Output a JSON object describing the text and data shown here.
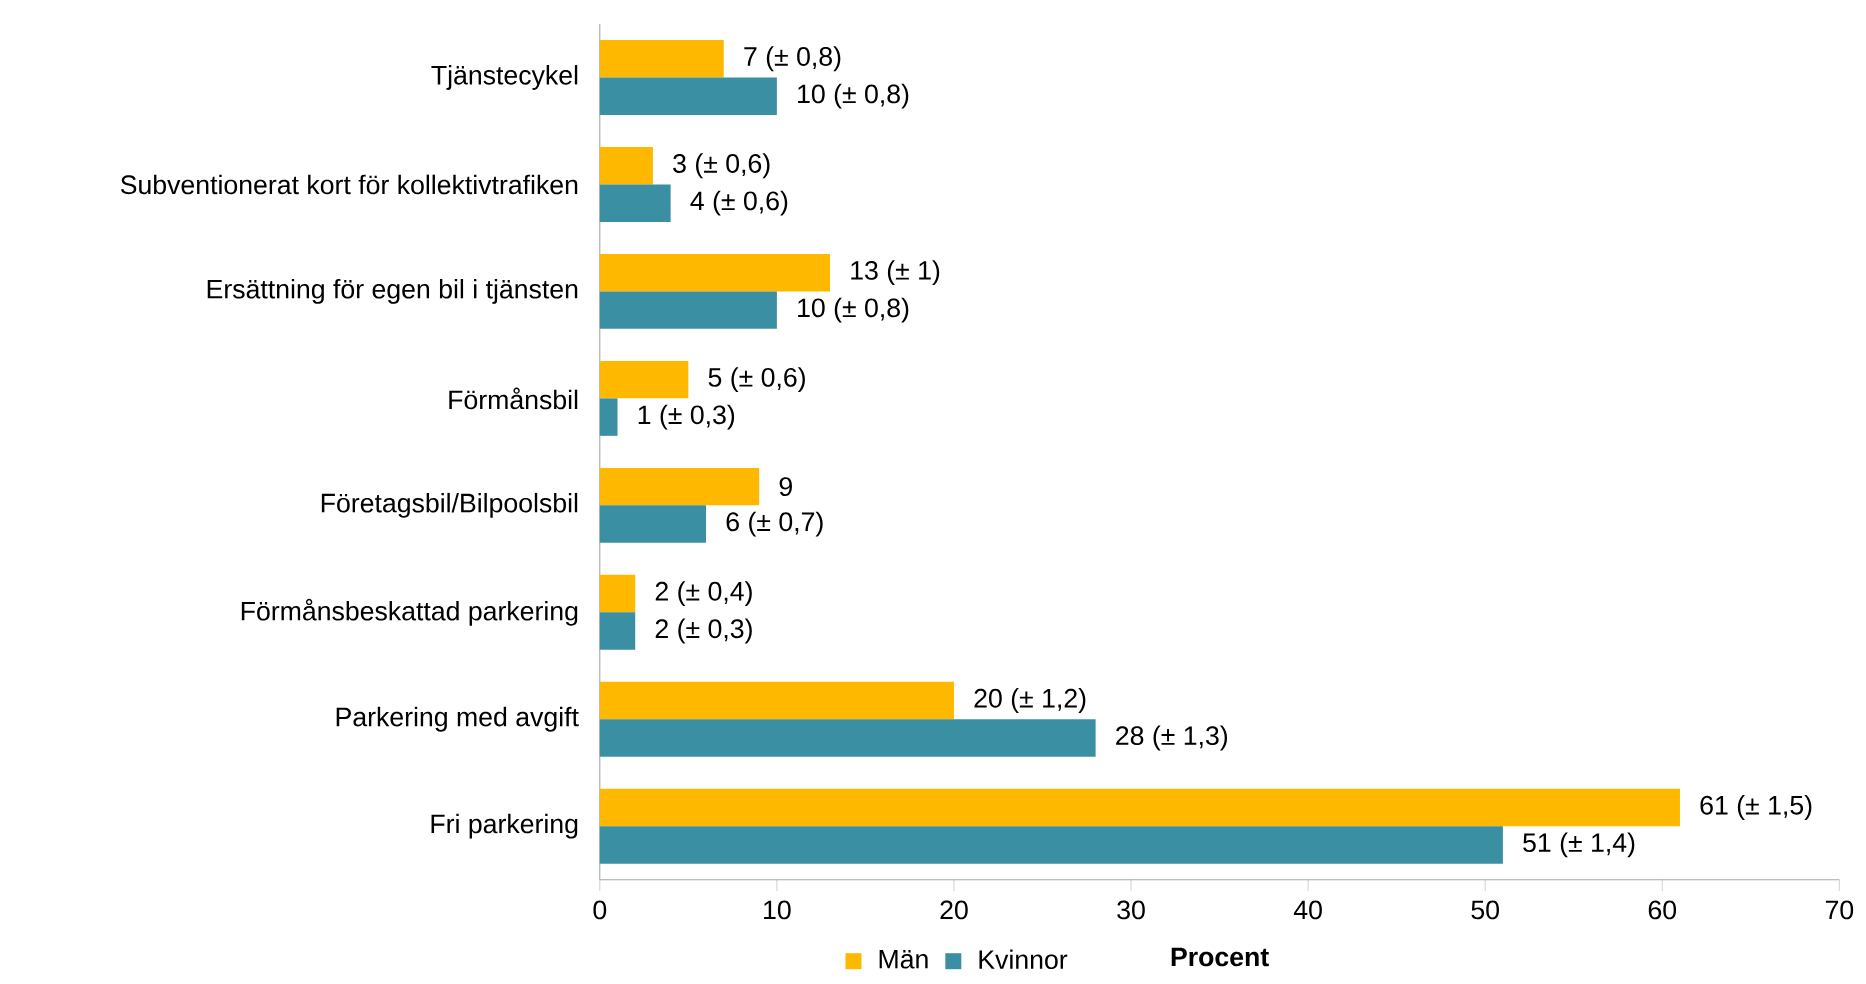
{
  "chart_data": {
    "type": "bar",
    "orientation": "horizontal",
    "xlabel": "Procent",
    "categories": [
      "Tjänstecykel",
      "Subventionerat kort för kollektivtrafiken",
      "Ersättning för egen bil i tjänsten",
      "Förmånsbil",
      "Företagsbil/Bilpoolsbil",
      "Förmånsbeskattad parkering",
      "Parkering med avgift",
      "Fri parkering"
    ],
    "series": [
      {
        "name": "Män",
        "color": "#ffb800",
        "values": [
          7,
          3,
          13,
          5,
          9,
          2,
          20,
          61
        ],
        "value_labels": [
          "7  (± 0,8)",
          "3  (± 0,6)",
          "13  (± 1)",
          "5  (± 0,6)",
          "9",
          "2  (± 0,4)",
          "20  (± 1,2)",
          "61  (± 1,5)"
        ]
      },
      {
        "name": "Kvinnor",
        "color": "#3a8fa3",
        "values": [
          10,
          4,
          10,
          1,
          6,
          2,
          28,
          51
        ],
        "value_labels": [
          "10  (± 0,8)",
          "4  (± 0,6)",
          "10  (± 0,8)",
          "1  (± 0,3)",
          "6  (± 0,7)",
          "2  (± 0,3)",
          "28  (± 1,3)",
          "51  (± 1,4)"
        ]
      }
    ],
    "xlim": [
      0,
      70
    ],
    "xticks": [
      0,
      10,
      20,
      30,
      40,
      50,
      60,
      70
    ],
    "grid": false,
    "legend": "bottom"
  }
}
